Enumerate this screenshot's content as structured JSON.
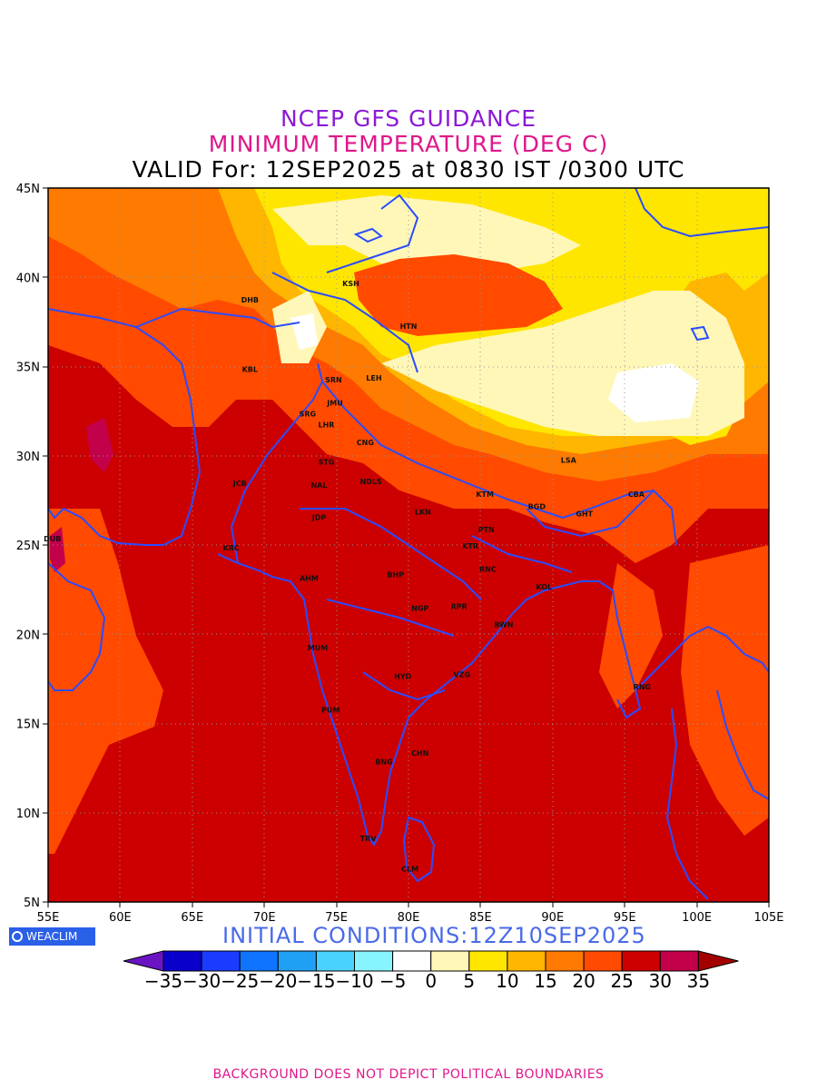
{
  "titles": {
    "line1": "NCEP GFS GUIDANCE",
    "line2": "MINIMUM TEMPERATURE (DEG C)",
    "line3": "VALID For: 12SEP2025 at 0830 IST /0300 UTC"
  },
  "map": {
    "lon_range": [
      55,
      105
    ],
    "lat_range": [
      5,
      45
    ],
    "lat_labels": [
      "45N",
      "40N",
      "35N",
      "30N",
      "25N",
      "20N",
      "15N",
      "10N",
      "5N"
    ],
    "lon_labels": [
      "55E",
      "60E",
      "65E",
      "70E",
      "75E",
      "80E",
      "85E",
      "90E",
      "95E",
      "100E",
      "105E"
    ],
    "grid": "dotted",
    "cities": [
      {
        "name": "KSH",
        "lon": 76.0,
        "lat": 39.5
      },
      {
        "name": "DHB",
        "lon": 69.0,
        "lat": 38.6
      },
      {
        "name": "HTN",
        "lon": 80.0,
        "lat": 37.1
      },
      {
        "name": "KBL",
        "lon": 69.0,
        "lat": 34.7
      },
      {
        "name": "SRN",
        "lon": 74.8,
        "lat": 34.1
      },
      {
        "name": "LEH",
        "lon": 77.6,
        "lat": 34.2
      },
      {
        "name": "JMU",
        "lon": 74.9,
        "lat": 32.8
      },
      {
        "name": "SRG",
        "lon": 73.0,
        "lat": 32.2
      },
      {
        "name": "LHR",
        "lon": 74.3,
        "lat": 31.6
      },
      {
        "name": "CNG",
        "lon": 77.0,
        "lat": 30.6
      },
      {
        "name": "STG",
        "lon": 74.3,
        "lat": 29.5
      },
      {
        "name": "JCB",
        "lon": 68.3,
        "lat": 28.3
      },
      {
        "name": "NAL",
        "lon": 73.8,
        "lat": 28.2
      },
      {
        "name": "NDLS",
        "lon": 77.4,
        "lat": 28.4
      },
      {
        "name": "LSA",
        "lon": 91.1,
        "lat": 29.6
      },
      {
        "name": "KTM",
        "lon": 85.3,
        "lat": 27.7
      },
      {
        "name": "CBA",
        "lon": 95.8,
        "lat": 27.7
      },
      {
        "name": "JDP",
        "lon": 73.8,
        "lat": 26.4
      },
      {
        "name": "LKN",
        "lon": 81.0,
        "lat": 26.7
      },
      {
        "name": "BGD",
        "lon": 88.9,
        "lat": 27.0
      },
      {
        "name": "GHT",
        "lon": 92.2,
        "lat": 26.6
      },
      {
        "name": "PTN",
        "lon": 85.4,
        "lat": 25.7
      },
      {
        "name": "DUB",
        "lon": 55.3,
        "lat": 25.2
      },
      {
        "name": "KRC",
        "lon": 67.7,
        "lat": 24.7
      },
      {
        "name": "KTR",
        "lon": 84.3,
        "lat": 24.8
      },
      {
        "name": "AHM",
        "lon": 73.1,
        "lat": 23.0
      },
      {
        "name": "BHP",
        "lon": 79.1,
        "lat": 23.2
      },
      {
        "name": "RNC",
        "lon": 85.5,
        "lat": 23.5
      },
      {
        "name": "KOL",
        "lon": 89.4,
        "lat": 22.5
      },
      {
        "name": "NGP",
        "lon": 80.8,
        "lat": 21.3
      },
      {
        "name": "RPR",
        "lon": 83.5,
        "lat": 21.4
      },
      {
        "name": "BWN",
        "lon": 86.6,
        "lat": 20.4
      },
      {
        "name": "MUM",
        "lon": 73.7,
        "lat": 19.1
      },
      {
        "name": "HYD",
        "lon": 79.6,
        "lat": 17.5
      },
      {
        "name": "VZG",
        "lon": 83.7,
        "lat": 17.6
      },
      {
        "name": "RNG",
        "lon": 96.2,
        "lat": 16.9
      },
      {
        "name": "PUM",
        "lon": 74.6,
        "lat": 15.6
      },
      {
        "name": "CHN",
        "lon": 80.8,
        "lat": 13.2
      },
      {
        "name": "BNG",
        "lon": 78.3,
        "lat": 12.7
      },
      {
        "name": "TRV",
        "lon": 77.2,
        "lat": 8.4
      },
      {
        "name": "CLM",
        "lon": 80.1,
        "lat": 6.7
      }
    ]
  },
  "logo": {
    "text": "WEACLIM",
    "icon": "globe-icon"
  },
  "initial_conditions": "INITIAL CONDITIONS:12Z10SEP2025",
  "colorbar": {
    "labels": [
      "-35",
      "-30",
      "-25",
      "-20",
      "-15",
      "-10",
      "-5",
      "0",
      "5",
      "10",
      "15",
      "20",
      "25",
      "30",
      "35"
    ],
    "colors": [
      "#6a14c4",
      "#0a00cc",
      "#1a3cff",
      "#0f74ff",
      "#20a0f5",
      "#4ad2ff",
      "#86f5ff",
      "#ffffff",
      "#fff7b8",
      "#ffe600",
      "#ffb600",
      "#ff7a00",
      "#ff4a00",
      "#cc0000",
      "#c3004a",
      "#a30000"
    ]
  },
  "footer": "BACKGROUND DOES NOT DEPICT POLITICAL BOUNDARIES"
}
